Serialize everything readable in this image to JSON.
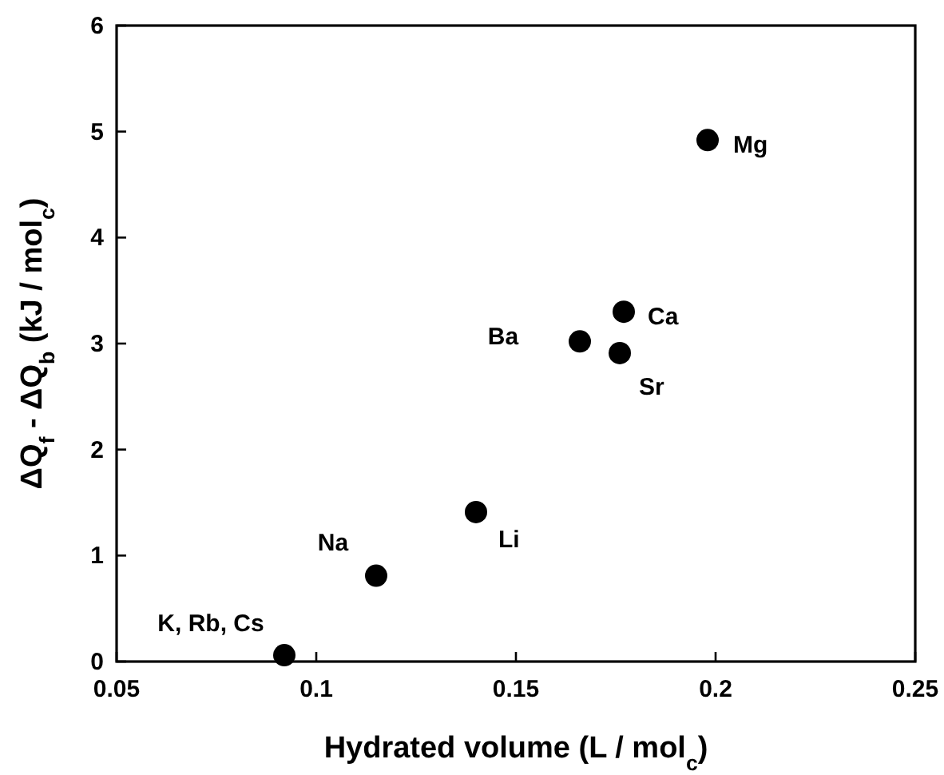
{
  "chart_data": {
    "type": "scatter",
    "xlabel": "Hydrated volume   (L / mol$_{c}$)",
    "ylabel": "ΔQ$_{f}$ - ΔQ$_{b}$   (kJ / mol$_{c}$)",
    "x": [
      0.092,
      0.115,
      0.14,
      0.166,
      0.176,
      0.177,
      0.198
    ],
    "series": [
      {
        "color": "#000000",
        "values": [
          0.06,
          0.81,
          1.41,
          3.02,
          2.91,
          3.3,
          4.92
        ]
      }
    ],
    "xlim": [
      0.05,
      0.25
    ],
    "xticks": [
      0.05,
      0.1,
      0.15,
      0.2,
      0.25
    ],
    "ylim": [
      0,
      6
    ],
    "yticks": [
      0,
      1,
      2,
      3,
      4,
      5,
      6
    ],
    "marker": "circle",
    "annotations": [
      {
        "text": "K, Rb, Cs",
        "x": 0.092,
        "y": 0.06
      },
      {
        "text": "Na",
        "x": 0.115,
        "y": 0.81
      },
      {
        "text": "Li",
        "x": 0.14,
        "y": 1.41
      },
      {
        "text": "Ba",
        "x": 0.166,
        "y": 3.02
      },
      {
        "text": "Sr",
        "x": 0.176,
        "y": 2.91
      },
      {
        "text": "Ca",
        "x": 0.177,
        "y": 3.3
      },
      {
        "text": "Mg",
        "x": 0.198,
        "y": 4.92
      }
    ]
  }
}
